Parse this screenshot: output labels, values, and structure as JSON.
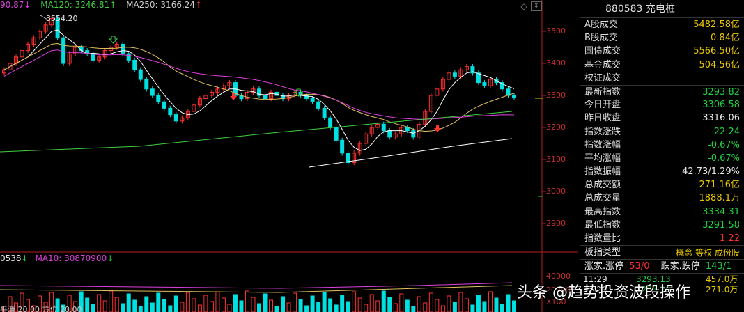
{
  "legend": {
    "ma_head": "90.87",
    "ma_head_arrow": "↓",
    "ma120": "MA120: 3246.81",
    "ma120_arrow": "↑",
    "ma250": "MA250: 3166.24",
    "ma250_arrow": "↑"
  },
  "vol_legend": {
    "vol_head": "0538",
    "vol_head_arrow": "↓",
    "ma10": "MA10: 30870900",
    "ma10_arrow": "↓"
  },
  "annotations": {
    "high": "3554.20"
  },
  "bottom_left": "平滑 20.00  方位 20.00",
  "yaxis": [
    "3500",
    "3400",
    "3300",
    "3200",
    "3100",
    "3000",
    "2900"
  ],
  "vol_axis": [
    "40000",
    "20000",
    "X100"
  ],
  "panel": {
    "title": "880583 充电桩",
    "rows": [
      {
        "label": "A股成交",
        "value": "5482.58亿",
        "color": "yellow"
      },
      {
        "label": "B股成交",
        "value": "0.84亿",
        "color": "yellow"
      },
      {
        "label": "国债成交",
        "value": "5566.50亿",
        "color": "yellow"
      },
      {
        "label": "基金成交",
        "value": "504.56亿",
        "color": "yellow"
      },
      {
        "label": "权证成交",
        "value": "",
        "color": "yellow"
      },
      {
        "label": "最新指数",
        "value": "3293.82",
        "color": "green"
      },
      {
        "label": "今日开盘",
        "value": "3306.58",
        "color": "green"
      },
      {
        "label": "昨日收盘",
        "value": "3316.06",
        "color": "white"
      },
      {
        "label": "指数涨跌",
        "value": "-22.24",
        "color": "green"
      },
      {
        "label": "指数涨幅",
        "value": "-0.67%",
        "color": "green"
      },
      {
        "label": "平均涨幅",
        "value": "-0.67%",
        "color": "green"
      },
      {
        "label": "指数振幅",
        "value": "42.73/1.29%",
        "color": "white"
      },
      {
        "label": "总成交额",
        "value": "271.16亿",
        "color": "yellow"
      },
      {
        "label": "总成交量",
        "value": "1888.1万",
        "color": "yellow"
      },
      {
        "label": "最高指数",
        "value": "3334.31",
        "color": "green"
      },
      {
        "label": "最低指数",
        "value": "3291.58",
        "color": "green"
      },
      {
        "label": "指数量比",
        "value": "1.22",
        "color": "red"
      }
    ],
    "type_label": "板指类型",
    "type_tags": "概念 等权 成份股",
    "zd_label1": "涨家.涨停",
    "zd_val1": "53/0",
    "zd_label2": "跌家.跌停",
    "zd_val2": "143/1",
    "ticks": [
      {
        "time": "11:29",
        "price": "3293.13",
        "vol": "457.0万"
      },
      {
        "time": "11:29",
        "price": "3293.29",
        "vol": "271.0万"
      }
    ]
  },
  "watermark": "头条 @趋势投资波段操作",
  "colors": {
    "up": "#ff3232",
    "down": "#00e0e0",
    "ma_white": "#ffffff",
    "ma_yellow": "#e0c060",
    "ma_purple": "#e040e0",
    "ma_green": "#40d040",
    "axis_red": "#b02020"
  }
}
